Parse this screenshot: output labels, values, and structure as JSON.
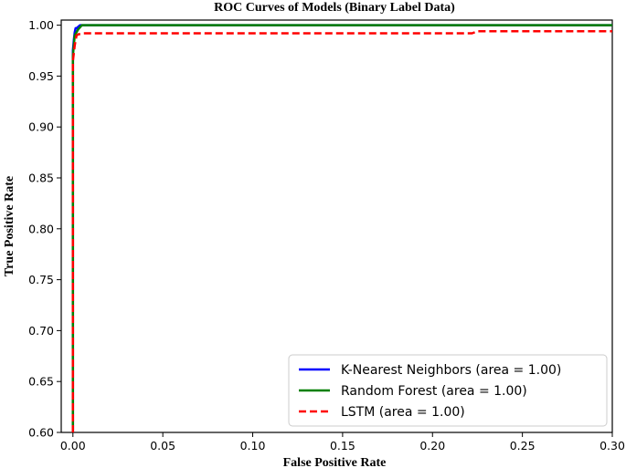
{
  "chart_data": {
    "type": "line",
    "title": "ROC Curves of Models (Binary Label Data)",
    "xlabel": "False Positive Rate",
    "ylabel": "True Positive Rate",
    "xlim": [
      -0.0065,
      0.3
    ],
    "ylim": [
      0.6,
      1.005
    ],
    "xticks": [
      0.0,
      0.05,
      0.1,
      0.15,
      0.2,
      0.25,
      0.3
    ],
    "xtick_labels": [
      "0.00",
      "0.05",
      "0.10",
      "0.15",
      "0.20",
      "0.25",
      "0.30"
    ],
    "yticks": [
      0.6,
      0.65,
      0.7,
      0.75,
      0.8,
      0.85,
      0.9,
      0.95,
      1.0
    ],
    "ytick_labels": [
      "0.60",
      "0.65",
      "0.70",
      "0.75",
      "0.80",
      "0.85",
      "0.90",
      "0.95",
      "1.00"
    ],
    "legend_position": "lower-right",
    "grid": false,
    "series": [
      {
        "name": "K-Nearest Neighbors (area = 1.00)",
        "color": "#0000ff",
        "dash": "solid",
        "x": [
          0,
          0,
          0.0005,
          0.001,
          0.0015,
          0.002,
          0.004,
          0.3
        ],
        "y": [
          0.6,
          0.975,
          0.985,
          0.993,
          0.997,
          0.997,
          1.0,
          1.0
        ]
      },
      {
        "name": "Random Forest (area = 1.00)",
        "color": "#008000",
        "dash": "solid",
        "x": [
          0,
          0,
          0.0005,
          0.001,
          0.002,
          0.003,
          0.004,
          0.005,
          0.3
        ],
        "y": [
          0.6,
          0.97,
          0.98,
          0.99,
          0.993,
          0.996,
          0.998,
          1.0,
          1.0
        ]
      },
      {
        "name": "LSTM (area = 1.00)",
        "color": "#ff0000",
        "dash": "dashed",
        "x": [
          0,
          0,
          0.001,
          0.002,
          0.003,
          0.006,
          0.222,
          0.225,
          0.3
        ],
        "y": [
          0.6,
          0.965,
          0.98,
          0.99,
          0.991,
          0.992,
          0.992,
          0.994,
          0.994
        ]
      }
    ]
  }
}
